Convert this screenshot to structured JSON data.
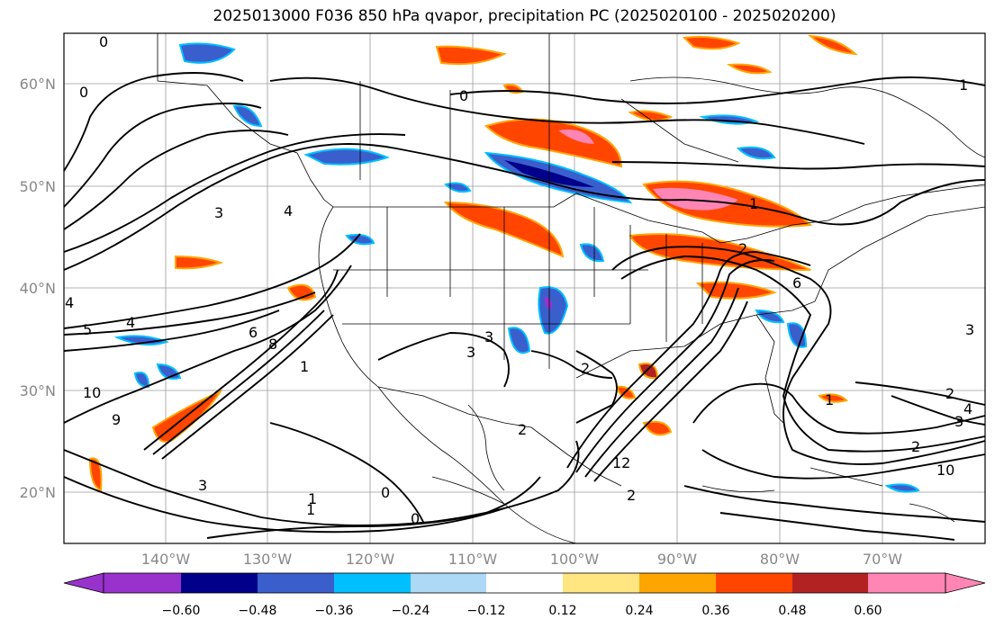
{
  "title": "2025013000 F036 850 hPa qvapor, precipitation PC (2025020100 - 2025020200)",
  "map": {
    "lat_labels": [
      "60°N",
      "50°N",
      "40°N",
      "30°N",
      "20°N"
    ],
    "lon_labels": [
      "140°W",
      "130°W",
      "120°W",
      "110°W",
      "100°W",
      "90°W",
      "80°W",
      "70°W"
    ],
    "lat_range": [
      15,
      65
    ],
    "lon_range": [
      -149,
      -59
    ],
    "grid": true
  },
  "contour_labels": [
    {
      "text": "0"
    },
    {
      "text": "0"
    },
    {
      "text": "0"
    },
    {
      "text": "1"
    },
    {
      "text": "3"
    },
    {
      "text": "4"
    },
    {
      "text": "5"
    },
    {
      "text": "4"
    },
    {
      "text": "6"
    },
    {
      "text": "8"
    },
    {
      "text": "10"
    },
    {
      "text": "9"
    },
    {
      "text": "1"
    },
    {
      "text": "3"
    },
    {
      "text": "2"
    },
    {
      "text": "0"
    },
    {
      "text": "0"
    },
    {
      "text": "1"
    },
    {
      "text": "3"
    },
    {
      "text": "3"
    },
    {
      "text": "2"
    },
    {
      "text": "12"
    },
    {
      "text": "1"
    },
    {
      "text": "6"
    },
    {
      "text": "2"
    },
    {
      "text": "1"
    },
    {
      "text": "2"
    },
    {
      "text": "4"
    },
    {
      "text": "3"
    },
    {
      "text": "2"
    },
    {
      "text": "10"
    },
    {
      "text": "3"
    },
    {
      "text": "1"
    },
    {
      "text": "4"
    },
    {
      "text": "2"
    }
  ],
  "colorbar": {
    "colors": [
      "#9932cc",
      "#00008b",
      "#3a5fcd",
      "#00bfff",
      "#add8f6",
      "#ffffff",
      "#ffe680",
      "#ffa500",
      "#ff4500",
      "#b22222",
      "#ff85b4"
    ],
    "labels": [
      "−0.60",
      "−0.48",
      "−0.36",
      "−0.24",
      "−0.12",
      "0.12",
      "0.24",
      "0.36",
      "0.48",
      "0.60"
    ],
    "levels": [
      -0.6,
      -0.48,
      -0.36,
      -0.24,
      -0.12,
      0.12,
      0.24,
      0.36,
      0.48,
      0.6
    ]
  },
  "precip_patches": [
    {
      "level": "positive_high",
      "color": "#ff85b4"
    },
    {
      "level": "positive",
      "color": "#ff4500"
    },
    {
      "level": "positive_low",
      "color": "#ffa500"
    },
    {
      "level": "negative",
      "color": "#3a5fcd"
    },
    {
      "level": "negative_high",
      "color": "#00008b"
    },
    {
      "level": "negative_low",
      "color": "#00bfff"
    }
  ]
}
